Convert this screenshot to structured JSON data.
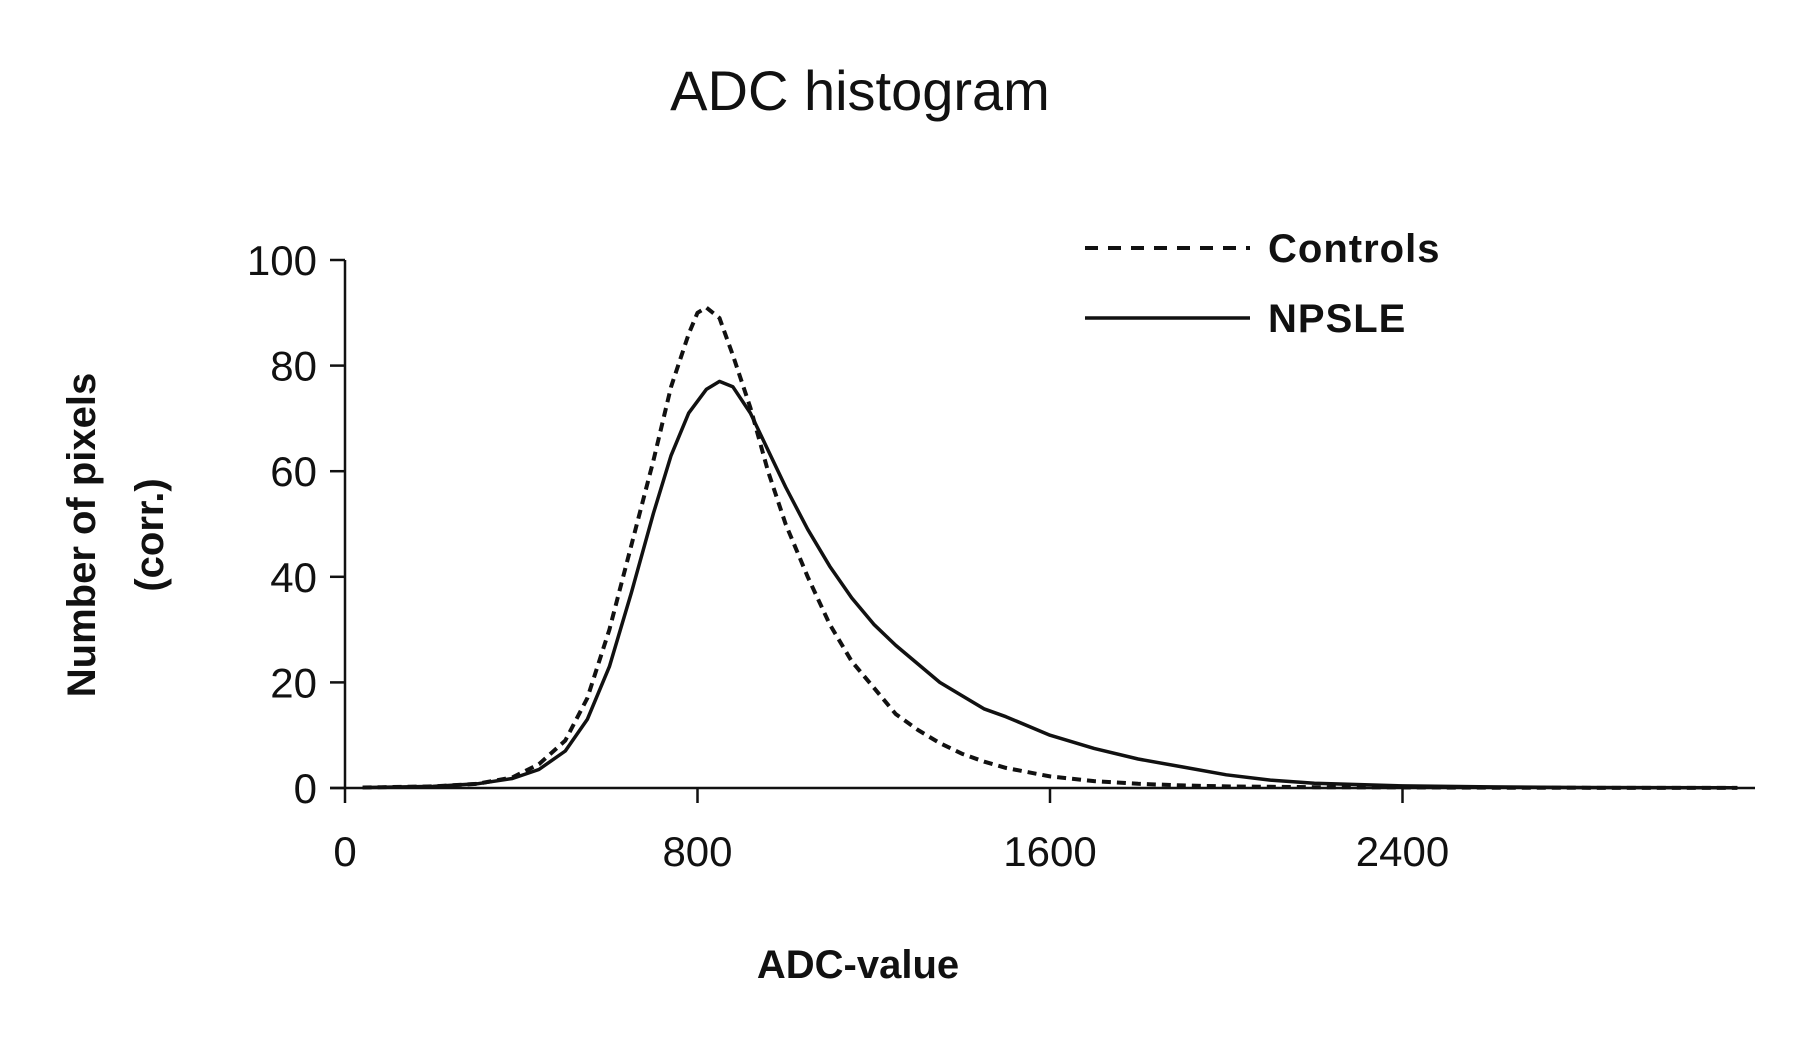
{
  "chart_data": {
    "type": "line",
    "title": "ADC histogram",
    "xlabel": "ADC-value",
    "ylabel_lines": [
      "Number of pixels",
      "(corr.)"
    ],
    "xlim": [
      0,
      3200
    ],
    "ylim": [
      0,
      100
    ],
    "x_ticks": [
      0,
      800,
      1600,
      2400
    ],
    "y_ticks": [
      0,
      20,
      40,
      60,
      80,
      100
    ],
    "grid": false,
    "legend_position": "top-right",
    "series": [
      {
        "name": "Controls",
        "style": "dashed",
        "color": "#111111",
        "points": [
          [
            40,
            0.1
          ],
          [
            200,
            0.3
          ],
          [
            300,
            0.8
          ],
          [
            380,
            2
          ],
          [
            440,
            4.5
          ],
          [
            500,
            9
          ],
          [
            550,
            17
          ],
          [
            600,
            30
          ],
          [
            650,
            46
          ],
          [
            700,
            62
          ],
          [
            740,
            76
          ],
          [
            780,
            86
          ],
          [
            800,
            90
          ],
          [
            820,
            91
          ],
          [
            850,
            89
          ],
          [
            880,
            82
          ],
          [
            920,
            72
          ],
          [
            960,
            60
          ],
          [
            1000,
            50
          ],
          [
            1050,
            40
          ],
          [
            1100,
            31
          ],
          [
            1150,
            24
          ],
          [
            1200,
            19
          ],
          [
            1250,
            14
          ],
          [
            1300,
            11
          ],
          [
            1350,
            8.5
          ],
          [
            1400,
            6.5
          ],
          [
            1450,
            5
          ],
          [
            1500,
            3.8
          ],
          [
            1600,
            2.2
          ],
          [
            1700,
            1.3
          ],
          [
            1800,
            0.8
          ],
          [
            1900,
            0.5
          ],
          [
            2000,
            0.3
          ],
          [
            2200,
            0.15
          ],
          [
            2600,
            0.05
          ],
          [
            3000,
            0.02
          ],
          [
            3160,
            0.01
          ]
        ]
      },
      {
        "name": "NPSLE",
        "style": "solid",
        "color": "#111111",
        "points": [
          [
            40,
            0.1
          ],
          [
            200,
            0.3
          ],
          [
            300,
            0.8
          ],
          [
            380,
            1.8
          ],
          [
            440,
            3.5
          ],
          [
            500,
            7
          ],
          [
            550,
            13
          ],
          [
            600,
            23
          ],
          [
            650,
            37
          ],
          [
            700,
            52
          ],
          [
            740,
            63
          ],
          [
            780,
            71
          ],
          [
            820,
            75.5
          ],
          [
            850,
            77
          ],
          [
            880,
            76
          ],
          [
            920,
            71
          ],
          [
            960,
            64
          ],
          [
            1000,
            57
          ],
          [
            1050,
            49
          ],
          [
            1100,
            42
          ],
          [
            1150,
            36
          ],
          [
            1200,
            31
          ],
          [
            1250,
            27
          ],
          [
            1300,
            23.5
          ],
          [
            1350,
            20
          ],
          [
            1400,
            17.5
          ],
          [
            1450,
            15
          ],
          [
            1500,
            13.5
          ],
          [
            1600,
            10
          ],
          [
            1700,
            7.5
          ],
          [
            1800,
            5.5
          ],
          [
            1900,
            4
          ],
          [
            2000,
            2.5
          ],
          [
            2100,
            1.5
          ],
          [
            2200,
            0.9
          ],
          [
            2400,
            0.4
          ],
          [
            2600,
            0.2
          ],
          [
            2800,
            0.1
          ],
          [
            3160,
            0.05
          ]
        ]
      }
    ]
  }
}
